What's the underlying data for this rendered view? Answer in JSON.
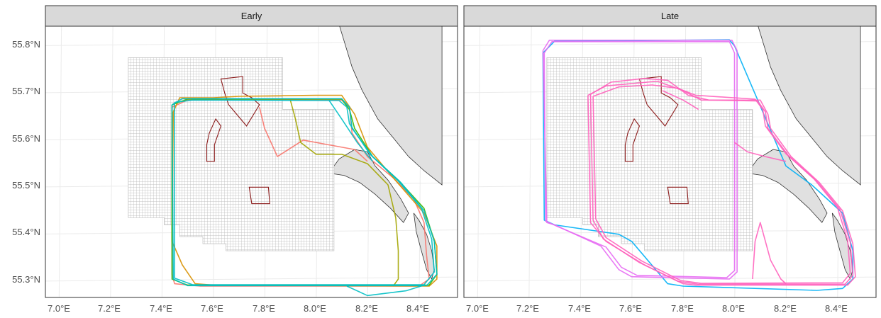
{
  "chart_data": {
    "type": "map",
    "facet_variable": "period",
    "panels": [
      {
        "title": "Early"
      },
      {
        "title": "Late"
      }
    ],
    "x_axis": {
      "ticks": [
        7.0,
        7.2,
        7.4,
        7.6,
        7.8,
        8.0,
        8.2,
        8.4
      ],
      "tick_labels": [
        "7.0°E",
        "7.2°E",
        "7.4°E",
        "7.6°E",
        "7.8°E",
        "8.0°E",
        "8.2°E",
        "8.4°E"
      ],
      "xlim": [
        7.0,
        8.5
      ]
    },
    "y_axis": {
      "ticks": [
        55.3,
        55.4,
        55.5,
        55.6,
        55.7,
        55.8
      ],
      "tick_labels": [
        "55.3°N",
        "55.4°N",
        "55.5°N",
        "55.6°N",
        "55.7°N",
        "55.8°N"
      ],
      "ylim": [
        55.255,
        55.84
      ]
    },
    "grid": true,
    "colors": {
      "land": "#e0e0e0",
      "land_outline": "#333333",
      "study_grid": "#b3b3b3",
      "wind_farm_outline": "#8b1a1a",
      "strip_fill": "#d9d9d9",
      "panel_border": "#333333",
      "gridline": "#ebebeb"
    },
    "study_grid_region": [
      [
        7.27,
        55.77
      ],
      [
        7.87,
        55.77
      ],
      [
        7.87,
        55.66
      ],
      [
        8.07,
        55.66
      ],
      [
        8.07,
        55.36
      ],
      [
        7.65,
        55.36
      ],
      [
        7.65,
        55.375
      ],
      [
        7.56,
        55.375
      ],
      [
        7.56,
        55.39
      ],
      [
        7.47,
        55.39
      ],
      [
        7.47,
        55.415
      ],
      [
        7.41,
        55.415
      ],
      [
        7.41,
        55.43
      ],
      [
        7.27,
        55.43
      ]
    ],
    "wind_farms": [
      [
        [
          7.63,
          55.725
        ],
        [
          7.715,
          55.73
        ],
        [
          7.715,
          55.695
        ],
        [
          7.75,
          55.685
        ],
        [
          7.78,
          55.67
        ],
        [
          7.73,
          55.625
        ],
        [
          7.66,
          55.67
        ],
        [
          7.645,
          55.695
        ]
      ],
      [
        [
          7.575,
          55.55
        ],
        [
          7.605,
          55.55
        ],
        [
          7.605,
          55.585
        ],
        [
          7.63,
          55.625
        ],
        [
          7.61,
          55.64
        ],
        [
          7.585,
          55.61
        ],
        [
          7.575,
          55.585
        ]
      ],
      [
        [
          7.74,
          55.495
        ],
        [
          7.815,
          55.495
        ],
        [
          7.82,
          55.46
        ],
        [
          7.75,
          55.46
        ]
      ]
    ],
    "coastline": [
      [
        8.09,
        55.84
      ],
      [
        8.14,
        55.75
      ],
      [
        8.18,
        55.7
      ],
      [
        8.24,
        55.64
      ],
      [
        8.3,
        55.6
      ],
      [
        8.36,
        55.56
      ],
      [
        8.42,
        55.53
      ],
      [
        8.49,
        55.5
      ],
      [
        8.49,
        55.84
      ]
    ],
    "islands": [
      [
        [
          8.05,
          55.525
        ],
        [
          8.09,
          55.555
        ],
        [
          8.15,
          55.575
        ],
        [
          8.2,
          55.57
        ],
        [
          8.23,
          55.54
        ],
        [
          8.28,
          55.51
        ],
        [
          8.33,
          55.47
        ],
        [
          8.36,
          55.44
        ],
        [
          8.34,
          55.42
        ],
        [
          8.29,
          55.45
        ],
        [
          8.23,
          55.48
        ],
        [
          8.17,
          55.505
        ],
        [
          8.11,
          55.52
        ]
      ],
      [
        [
          8.38,
          55.44
        ],
        [
          8.4,
          55.425
        ],
        [
          8.43,
          55.395
        ],
        [
          8.45,
          55.36
        ],
        [
          8.46,
          55.32
        ],
        [
          8.45,
          55.3
        ],
        [
          8.43,
          55.32
        ],
        [
          8.41,
          55.36
        ],
        [
          8.39,
          55.4
        ]
      ]
    ],
    "tracks_early": [
      {
        "color": "#f8766d",
        "points": [
          [
            7.44,
            55.665
          ],
          [
            7.5,
            55.68
          ],
          [
            7.7,
            55.682
          ],
          [
            8.1,
            55.68
          ],
          [
            8.13,
            55.665
          ],
          [
            8.14,
            55.61
          ],
          [
            8.2,
            55.56
          ],
          [
            8.3,
            55.515
          ],
          [
            8.38,
            55.47
          ],
          [
            8.42,
            55.42
          ],
          [
            8.43,
            55.35
          ],
          [
            8.44,
            55.3
          ],
          [
            8.4,
            55.285
          ],
          [
            7.55,
            55.285
          ],
          [
            7.45,
            55.29
          ],
          [
            7.44,
            55.31
          ],
          [
            7.44,
            55.665
          ]
        ]
      },
      {
        "color": "#f8766d",
        "points": [
          [
            7.78,
            55.665
          ],
          [
            7.8,
            55.62
          ],
          [
            7.85,
            55.56
          ],
          [
            7.95,
            55.595
          ],
          [
            8.05,
            55.585
          ],
          [
            8.15,
            55.575
          ],
          [
            8.2,
            55.55
          ]
        ]
      },
      {
        "color": "#d89000",
        "points": [
          [
            7.445,
            55.655
          ],
          [
            7.47,
            55.685
          ],
          [
            7.6,
            55.685
          ],
          [
            7.7,
            55.688
          ],
          [
            8.0,
            55.69
          ],
          [
            8.1,
            55.69
          ],
          [
            8.15,
            55.65
          ],
          [
            8.2,
            55.58
          ],
          [
            8.3,
            55.515
          ],
          [
            8.42,
            55.44
          ],
          [
            8.47,
            55.37
          ],
          [
            8.47,
            55.3
          ],
          [
            8.44,
            55.285
          ],
          [
            7.6,
            55.287
          ],
          [
            7.53,
            55.29
          ],
          [
            7.48,
            55.33
          ],
          [
            7.44,
            55.38
          ],
          [
            7.445,
            55.655
          ]
        ]
      },
      {
        "color": "#a3a500",
        "points": [
          [
            7.9,
            55.68
          ],
          [
            7.92,
            55.64
          ],
          [
            7.94,
            55.59
          ],
          [
            8.0,
            55.565
          ],
          [
            8.1,
            55.565
          ],
          [
            8.2,
            55.545
          ],
          [
            8.28,
            55.5
          ],
          [
            8.31,
            55.43
          ],
          [
            8.32,
            55.36
          ],
          [
            8.32,
            55.3
          ],
          [
            8.3,
            55.285
          ]
        ]
      },
      {
        "color": "#39b600",
        "points": [
          [
            7.44,
            55.67
          ],
          [
            7.5,
            55.682
          ],
          [
            8.1,
            55.682
          ],
          [
            8.13,
            55.66
          ],
          [
            8.15,
            55.62
          ],
          [
            8.22,
            55.56
          ],
          [
            8.32,
            55.51
          ],
          [
            8.42,
            55.45
          ],
          [
            8.46,
            55.38
          ],
          [
            8.47,
            55.31
          ],
          [
            8.44,
            55.287
          ],
          [
            7.5,
            55.287
          ],
          [
            7.44,
            55.3
          ],
          [
            7.44,
            55.67
          ]
        ]
      },
      {
        "color": "#00bfc4",
        "points": [
          [
            7.44,
            55.67
          ],
          [
            7.48,
            55.683
          ],
          [
            8.1,
            55.683
          ],
          [
            8.13,
            55.665
          ],
          [
            8.14,
            55.62
          ],
          [
            8.22,
            55.56
          ],
          [
            8.33,
            55.505
          ],
          [
            8.42,
            55.445
          ],
          [
            8.46,
            55.38
          ],
          [
            8.47,
            55.31
          ],
          [
            8.43,
            55.286
          ],
          [
            7.5,
            55.286
          ],
          [
            7.445,
            55.3
          ],
          [
            7.44,
            55.67
          ]
        ]
      },
      {
        "color": "#00bfc4",
        "points": [
          [
            7.45,
            55.675
          ],
          [
            7.52,
            55.68
          ],
          [
            8.09,
            55.679
          ],
          [
            8.12,
            55.665
          ],
          [
            8.13,
            55.63
          ],
          [
            8.21,
            55.565
          ],
          [
            8.32,
            55.508
          ],
          [
            8.41,
            55.45
          ],
          [
            8.45,
            55.385
          ],
          [
            8.46,
            55.315
          ],
          [
            8.42,
            55.288
          ],
          [
            7.52,
            55.288
          ],
          [
            7.45,
            55.302
          ],
          [
            7.45,
            55.675
          ]
        ]
      },
      {
        "color": "#00bfc4",
        "points": [
          [
            8.05,
            55.68
          ],
          [
            8.1,
            55.64
          ],
          [
            8.16,
            55.59
          ],
          [
            8.22,
            55.55
          ]
        ]
      },
      {
        "color": "#00bfc4",
        "points": [
          [
            8.12,
            55.285
          ],
          [
            8.2,
            55.265
          ],
          [
            8.35,
            55.275
          ],
          [
            8.42,
            55.287
          ]
        ]
      }
    ],
    "tracks_late": [
      {
        "color": "#00b0f6",
        "points": [
          [
            7.255,
            55.78
          ],
          [
            7.3,
            55.805
          ],
          [
            7.98,
            55.808
          ],
          [
            8.0,
            55.795
          ],
          [
            8.2,
            55.54
          ],
          [
            8.3,
            55.5
          ],
          [
            8.42,
            55.44
          ],
          [
            8.46,
            55.36
          ],
          [
            8.46,
            55.3
          ],
          [
            8.42,
            55.28
          ],
          [
            8.32,
            55.276
          ],
          [
            7.8,
            55.285
          ],
          [
            7.74,
            55.29
          ],
          [
            7.6,
            55.38
          ],
          [
            7.55,
            55.395
          ],
          [
            7.3,
            55.415
          ],
          [
            7.26,
            55.425
          ],
          [
            7.255,
            55.78
          ]
        ]
      },
      {
        "color": "#e76bf3",
        "points": [
          [
            7.255,
            55.785
          ],
          [
            7.28,
            55.807
          ],
          [
            7.99,
            55.807
          ],
          [
            8.01,
            55.785
          ],
          [
            8.01,
            55.315
          ],
          [
            7.98,
            55.3
          ],
          [
            7.6,
            55.305
          ],
          [
            7.55,
            55.32
          ],
          [
            7.48,
            55.37
          ],
          [
            7.3,
            55.415
          ],
          [
            7.27,
            55.42
          ],
          [
            7.255,
            55.785
          ]
        ]
      },
      {
        "color": "#e76bf3",
        "points": [
          [
            7.26,
            55.78
          ],
          [
            7.29,
            55.804
          ],
          [
            7.98,
            55.804
          ],
          [
            8.0,
            55.78
          ],
          [
            8.0,
            55.318
          ],
          [
            7.97,
            55.303
          ],
          [
            7.62,
            55.308
          ],
          [
            7.56,
            55.325
          ],
          [
            7.5,
            55.368
          ],
          [
            7.31,
            55.412
          ],
          [
            7.265,
            55.423
          ],
          [
            7.26,
            55.78
          ]
        ]
      },
      {
        "color": "#ff62bc",
        "points": [
          [
            7.43,
            55.69
          ],
          [
            7.5,
            55.71
          ],
          [
            7.6,
            55.715
          ],
          [
            7.7,
            55.72
          ],
          [
            7.8,
            55.7
          ],
          [
            7.87,
            55.68
          ],
          [
            8.1,
            55.68
          ],
          [
            8.13,
            55.65
          ],
          [
            8.14,
            55.62
          ],
          [
            8.22,
            55.56
          ],
          [
            8.33,
            55.505
          ],
          [
            8.42,
            55.445
          ],
          [
            8.46,
            55.375
          ],
          [
            8.47,
            55.305
          ],
          [
            8.44,
            55.287
          ],
          [
            7.85,
            55.287
          ],
          [
            7.8,
            55.29
          ],
          [
            7.65,
            55.33
          ],
          [
            7.5,
            55.38
          ],
          [
            7.44,
            55.42
          ],
          [
            7.43,
            55.69
          ]
        ]
      },
      {
        "color": "#ff62bc",
        "points": [
          [
            7.44,
            55.692
          ],
          [
            7.52,
            55.718
          ],
          [
            7.65,
            55.726
          ],
          [
            7.74,
            55.722
          ],
          [
            7.82,
            55.69
          ],
          [
            7.9,
            55.68
          ],
          [
            8.09,
            55.678
          ],
          [
            8.12,
            55.655
          ],
          [
            8.13,
            55.62
          ],
          [
            8.21,
            55.562
          ],
          [
            8.32,
            55.508
          ],
          [
            8.41,
            55.448
          ],
          [
            8.45,
            55.378
          ],
          [
            8.46,
            55.308
          ],
          [
            8.43,
            55.289
          ],
          [
            7.86,
            55.289
          ],
          [
            7.78,
            55.295
          ],
          [
            7.63,
            55.335
          ],
          [
            7.49,
            55.385
          ],
          [
            7.45,
            55.425
          ],
          [
            7.44,
            55.692
          ]
        ]
      },
      {
        "color": "#ff62bc",
        "points": [
          [
            7.45,
            55.688
          ],
          [
            7.55,
            55.708
          ],
          [
            7.68,
            55.712
          ],
          [
            7.78,
            55.705
          ],
          [
            7.85,
            55.69
          ],
          [
            8.08,
            55.682
          ],
          [
            8.11,
            55.66
          ],
          [
            8.12,
            55.625
          ],
          [
            8.2,
            55.566
          ],
          [
            8.31,
            55.512
          ],
          [
            8.4,
            55.452
          ],
          [
            8.44,
            55.382
          ],
          [
            8.45,
            55.312
          ],
          [
            8.42,
            55.292
          ],
          [
            7.87,
            55.291
          ],
          [
            7.79,
            55.297
          ],
          [
            7.64,
            55.338
          ],
          [
            7.5,
            55.388
          ],
          [
            7.46,
            55.428
          ],
          [
            7.45,
            55.688
          ]
        ]
      },
      {
        "color": "#ff62bc",
        "points": [
          [
            7.72,
            55.7
          ],
          [
            7.8,
            55.68
          ],
          [
            7.86,
            55.66
          ]
        ]
      },
      {
        "color": "#ff62bc",
        "points": [
          [
            8.07,
            55.3
          ],
          [
            8.08,
            55.38
          ],
          [
            8.1,
            55.42
          ],
          [
            8.14,
            55.34
          ],
          [
            8.18,
            55.3
          ],
          [
            8.2,
            55.29
          ]
        ]
      },
      {
        "color": "#ff62bc",
        "points": [
          [
            8.0,
            55.59
          ],
          [
            8.05,
            55.57
          ],
          [
            8.12,
            55.56
          ],
          [
            8.2,
            55.55
          ]
        ]
      }
    ]
  }
}
